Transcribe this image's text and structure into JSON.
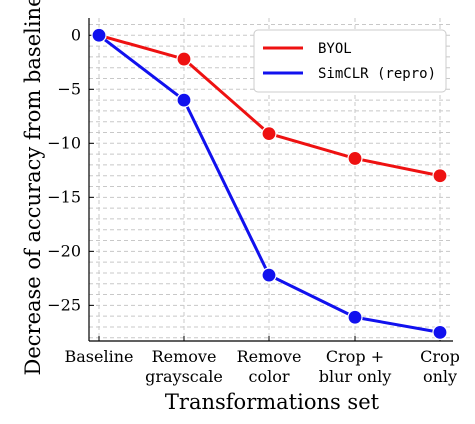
{
  "chart_data": {
    "type": "line",
    "title": "",
    "xlabel": "Transformations set",
    "ylabel": "Decrease of accuracy from baseline",
    "categories": [
      [
        "Baseline"
      ],
      [
        "Remove",
        "grayscale"
      ],
      [
        "Remove",
        "color"
      ],
      [
        "Crop +",
        "blur only"
      ],
      [
        "Crop",
        "only"
      ]
    ],
    "yticks": [
      0,
      -5,
      -10,
      -15,
      -20,
      -25
    ],
    "ylim": [
      -28.3,
      1.6
    ],
    "grid": true,
    "legend_position": "top-right",
    "series": [
      {
        "name": "BYOL",
        "values": [
          0,
          -2.2,
          -9.1,
          -11.4,
          -13.0
        ],
        "color": "#ee1111"
      },
      {
        "name": "SimCLR (repro)",
        "values": [
          0,
          -6.0,
          -22.2,
          -26.1,
          -27.5
        ],
        "color": "#1111ee"
      }
    ]
  }
}
